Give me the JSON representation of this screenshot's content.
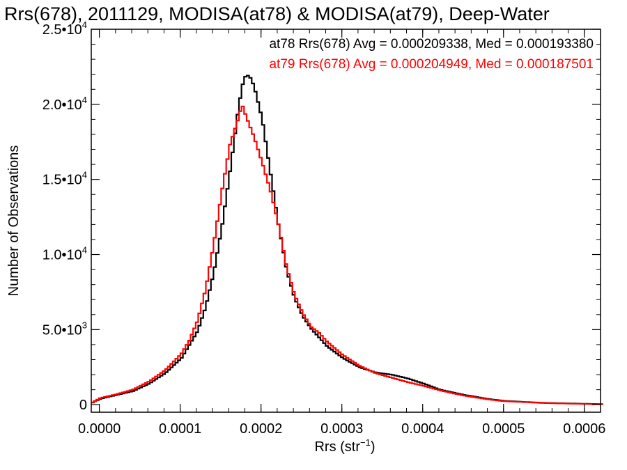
{
  "chart_data": {
    "type": "line",
    "title": "Rrs(678), 2011129, MODISA(at78) & MODISA(at79), Deep-Water",
    "xlabel": "Rrs (str",
    "xlabel_sup": "−1",
    "xlabel_close": ")",
    "ylabel": "Number of Observations",
    "xlim": [
      -1e-05,
      0.00062
    ],
    "ylim": [
      -500,
      25000
    ],
    "x_tick_values": [
      0.0,
      0.0001,
      0.0002,
      0.0003,
      0.0004,
      0.0005,
      0.0006
    ],
    "x_tick_labels": [
      "0.0000",
      "0.0001",
      "0.0002",
      "0.0003",
      "0.0004",
      "0.0005",
      "0.0006"
    ],
    "y_ticks": [
      {
        "value": 0,
        "mant": "0",
        "sup": ""
      },
      {
        "value": 5000,
        "mant": "5.0•10",
        "sup": "3"
      },
      {
        "value": 10000,
        "mant": "1.0•10",
        "sup": "4"
      },
      {
        "value": 15000,
        "mant": "1.5•10",
        "sup": "4"
      },
      {
        "value": 20000,
        "mant": "2.0•10",
        "sup": "4"
      },
      {
        "value": 25000,
        "mant": "2.5•10",
        "sup": "4"
      }
    ],
    "grid": false,
    "step": true,
    "legend": [
      {
        "text": "at78 Rrs(678) Avg = 0.000209338, Med = 0.000193380",
        "color": "#000000"
      },
      {
        "text": "at79 Rrs(678) Avg = 0.000204949, Med = 0.000187501",
        "color": "#ff0000"
      }
    ],
    "series": [
      {
        "color": "#000000",
        "x": [
          -1e-05,
          0.0,
          2e-05,
          4e-05,
          6e-05,
          8e-05,
          0.0001,
          0.00012,
          0.00013,
          0.00014,
          0.00015,
          0.00016,
          0.00017,
          0.000175,
          0.00018,
          0.000185,
          0.00019,
          0.0002,
          0.00021,
          0.00022,
          0.00023,
          0.00024,
          0.00025,
          0.00026,
          0.00027,
          0.00028,
          0.0003,
          0.00032,
          0.00034,
          0.00036,
          0.00038,
          0.0004,
          0.00042,
          0.00045,
          0.00048,
          0.0005,
          0.00055,
          0.0006,
          0.00062
        ],
        "y": [
          150,
          400,
          650,
          900,
          1400,
          2100,
          3100,
          4900,
          6500,
          8800,
          11800,
          15500,
          19500,
          21200,
          22000,
          21800,
          21200,
          19000,
          15500,
          12000,
          9000,
          7100,
          5900,
          5100,
          4500,
          3900,
          3100,
          2500,
          2150,
          2000,
          1750,
          1400,
          1000,
          650,
          380,
          250,
          120,
          60,
          40
        ]
      },
      {
        "color": "#ff0000",
        "x": [
          -1e-05,
          0.0,
          2e-05,
          4e-05,
          6e-05,
          8e-05,
          0.0001,
          0.00011,
          0.00012,
          0.00013,
          0.00014,
          0.00015,
          0.00016,
          0.00017,
          0.000175,
          0.00018,
          0.00019,
          0.0002,
          0.00021,
          0.00022,
          0.00023,
          0.00024,
          0.00025,
          0.00026,
          0.00027,
          0.00028,
          0.0003,
          0.00032,
          0.00034,
          0.00036,
          0.00038,
          0.0004,
          0.00042,
          0.00045,
          0.00048,
          0.0005,
          0.00055,
          0.0006,
          0.00062
        ],
        "y": [
          150,
          450,
          700,
          1000,
          1550,
          2300,
          3400,
          4300,
          5600,
          7700,
          10700,
          14200,
          17300,
          19000,
          20000,
          19200,
          17800,
          16100,
          14300,
          12000,
          9200,
          7300,
          6100,
          5200,
          4800,
          4200,
          3300,
          2600,
          2100,
          1800,
          1500,
          1250,
          950,
          600,
          350,
          230,
          110,
          50,
          30
        ]
      }
    ]
  }
}
